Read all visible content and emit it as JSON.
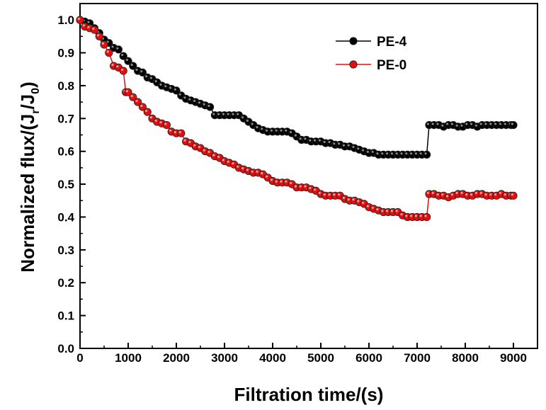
{
  "chart_data": {
    "type": "line",
    "xlabel": "Filtration time/(s)",
    "ylabel_parts": [
      "Normalized flux/(J",
      "r",
      "/J",
      "0",
      ")"
    ],
    "xlim": [
      0,
      9500
    ],
    "ylim": [
      0,
      1.05
    ],
    "x_ticks": [
      "0",
      "1000",
      "2000",
      "3000",
      "4000",
      "5000",
      "6000",
      "7000",
      "8000",
      "9000"
    ],
    "y_ticks": [
      "0.0",
      "0.1",
      "0.2",
      "0.3",
      "0.4",
      "0.5",
      "0.6",
      "0.7",
      "0.8",
      "0.9",
      "1.0"
    ],
    "legend_position": "top-right",
    "series": [
      {
        "name": "PE-4",
        "color": "#000000",
        "points": [
          [
            0,
            1.0
          ],
          [
            100,
            0.995
          ],
          [
            200,
            0.99
          ],
          [
            300,
            0.975
          ],
          [
            400,
            0.96
          ],
          [
            500,
            0.94
          ],
          [
            600,
            0.93
          ],
          [
            700,
            0.915
          ],
          [
            800,
            0.91
          ],
          [
            900,
            0.89
          ],
          [
            1000,
            0.875
          ],
          [
            1100,
            0.86
          ],
          [
            1200,
            0.845
          ],
          [
            1300,
            0.84
          ],
          [
            1400,
            0.825
          ],
          [
            1500,
            0.82
          ],
          [
            1600,
            0.81
          ],
          [
            1700,
            0.8
          ],
          [
            1800,
            0.795
          ],
          [
            1900,
            0.79
          ],
          [
            2000,
            0.785
          ],
          [
            2100,
            0.77
          ],
          [
            2200,
            0.76
          ],
          [
            2300,
            0.755
          ],
          [
            2400,
            0.75
          ],
          [
            2500,
            0.745
          ],
          [
            2600,
            0.74
          ],
          [
            2700,
            0.735
          ],
          [
            2800,
            0.71
          ],
          [
            2900,
            0.71
          ],
          [
            3000,
            0.71
          ],
          [
            3100,
            0.71
          ],
          [
            3200,
            0.71
          ],
          [
            3300,
            0.71
          ],
          [
            3400,
            0.7
          ],
          [
            3500,
            0.69
          ],
          [
            3600,
            0.68
          ],
          [
            3700,
            0.67
          ],
          [
            3800,
            0.665
          ],
          [
            3900,
            0.66
          ],
          [
            4000,
            0.66
          ],
          [
            4100,
            0.66
          ],
          [
            4200,
            0.66
          ],
          [
            4300,
            0.66
          ],
          [
            4400,
            0.655
          ],
          [
            4500,
            0.645
          ],
          [
            4600,
            0.635
          ],
          [
            4700,
            0.635
          ],
          [
            4800,
            0.63
          ],
          [
            4900,
            0.63
          ],
          [
            5000,
            0.63
          ],
          [
            5100,
            0.625
          ],
          [
            5200,
            0.625
          ],
          [
            5300,
            0.62
          ],
          [
            5400,
            0.62
          ],
          [
            5500,
            0.615
          ],
          [
            5600,
            0.615
          ],
          [
            5700,
            0.61
          ],
          [
            5800,
            0.605
          ],
          [
            5900,
            0.6
          ],
          [
            6000,
            0.595
          ],
          [
            6100,
            0.595
          ],
          [
            6200,
            0.59
          ],
          [
            6300,
            0.59
          ],
          [
            6400,
            0.59
          ],
          [
            6500,
            0.59
          ],
          [
            6600,
            0.59
          ],
          [
            6700,
            0.59
          ],
          [
            6800,
            0.59
          ],
          [
            6900,
            0.59
          ],
          [
            7000,
            0.59
          ],
          [
            7100,
            0.59
          ],
          [
            7200,
            0.59
          ],
          [
            7250,
            0.68
          ],
          [
            7350,
            0.68
          ],
          [
            7450,
            0.68
          ],
          [
            7550,
            0.675
          ],
          [
            7650,
            0.68
          ],
          [
            7750,
            0.68
          ],
          [
            7850,
            0.675
          ],
          [
            7950,
            0.675
          ],
          [
            8050,
            0.68
          ],
          [
            8150,
            0.68
          ],
          [
            8250,
            0.675
          ],
          [
            8350,
            0.68
          ],
          [
            8450,
            0.68
          ],
          [
            8550,
            0.68
          ],
          [
            8650,
            0.68
          ],
          [
            8750,
            0.68
          ],
          [
            8850,
            0.68
          ],
          [
            8950,
            0.68
          ],
          [
            9000,
            0.68
          ]
        ]
      },
      {
        "name": "PE-0",
        "color": "#e01010",
        "points": [
          [
            0,
            1.0
          ],
          [
            100,
            0.98
          ],
          [
            200,
            0.975
          ],
          [
            300,
            0.97
          ],
          [
            400,
            0.95
          ],
          [
            500,
            0.925
          ],
          [
            600,
            0.9
          ],
          [
            700,
            0.86
          ],
          [
            800,
            0.855
          ],
          [
            900,
            0.845
          ],
          [
            950,
            0.78
          ],
          [
            1000,
            0.78
          ],
          [
            1100,
            0.765
          ],
          [
            1200,
            0.75
          ],
          [
            1300,
            0.735
          ],
          [
            1400,
            0.72
          ],
          [
            1500,
            0.7
          ],
          [
            1600,
            0.69
          ],
          [
            1700,
            0.685
          ],
          [
            1800,
            0.68
          ],
          [
            1900,
            0.66
          ],
          [
            2000,
            0.655
          ],
          [
            2100,
            0.655
          ],
          [
            2200,
            0.63
          ],
          [
            2300,
            0.625
          ],
          [
            2400,
            0.615
          ],
          [
            2500,
            0.61
          ],
          [
            2600,
            0.6
          ],
          [
            2700,
            0.595
          ],
          [
            2800,
            0.585
          ],
          [
            2900,
            0.58
          ],
          [
            3000,
            0.57
          ],
          [
            3100,
            0.565
          ],
          [
            3200,
            0.56
          ],
          [
            3300,
            0.55
          ],
          [
            3400,
            0.545
          ],
          [
            3500,
            0.54
          ],
          [
            3600,
            0.535
          ],
          [
            3700,
            0.535
          ],
          [
            3800,
            0.53
          ],
          [
            3900,
            0.52
          ],
          [
            4000,
            0.51
          ],
          [
            4100,
            0.505
          ],
          [
            4200,
            0.505
          ],
          [
            4300,
            0.505
          ],
          [
            4400,
            0.5
          ],
          [
            4500,
            0.49
          ],
          [
            4600,
            0.49
          ],
          [
            4700,
            0.49
          ],
          [
            4800,
            0.485
          ],
          [
            4900,
            0.48
          ],
          [
            5000,
            0.47
          ],
          [
            5100,
            0.465
          ],
          [
            5200,
            0.465
          ],
          [
            5300,
            0.465
          ],
          [
            5400,
            0.465
          ],
          [
            5500,
            0.455
          ],
          [
            5600,
            0.45
          ],
          [
            5700,
            0.45
          ],
          [
            5800,
            0.445
          ],
          [
            5900,
            0.44
          ],
          [
            6000,
            0.43
          ],
          [
            6100,
            0.425
          ],
          [
            6200,
            0.42
          ],
          [
            6300,
            0.415
          ],
          [
            6400,
            0.415
          ],
          [
            6500,
            0.415
          ],
          [
            6600,
            0.415
          ],
          [
            6700,
            0.405
          ],
          [
            6800,
            0.4
          ],
          [
            6900,
            0.4
          ],
          [
            7000,
            0.4
          ],
          [
            7100,
            0.4
          ],
          [
            7200,
            0.4
          ],
          [
            7250,
            0.47
          ],
          [
            7350,
            0.47
          ],
          [
            7450,
            0.465
          ],
          [
            7550,
            0.465
          ],
          [
            7650,
            0.46
          ],
          [
            7750,
            0.465
          ],
          [
            7850,
            0.47
          ],
          [
            7950,
            0.47
          ],
          [
            8050,
            0.465
          ],
          [
            8150,
            0.465
          ],
          [
            8250,
            0.47
          ],
          [
            8350,
            0.47
          ],
          [
            8450,
            0.465
          ],
          [
            8550,
            0.465
          ],
          [
            8650,
            0.465
          ],
          [
            8750,
            0.47
          ],
          [
            8850,
            0.465
          ],
          [
            8950,
            0.465
          ],
          [
            9000,
            0.465
          ]
        ]
      }
    ]
  }
}
